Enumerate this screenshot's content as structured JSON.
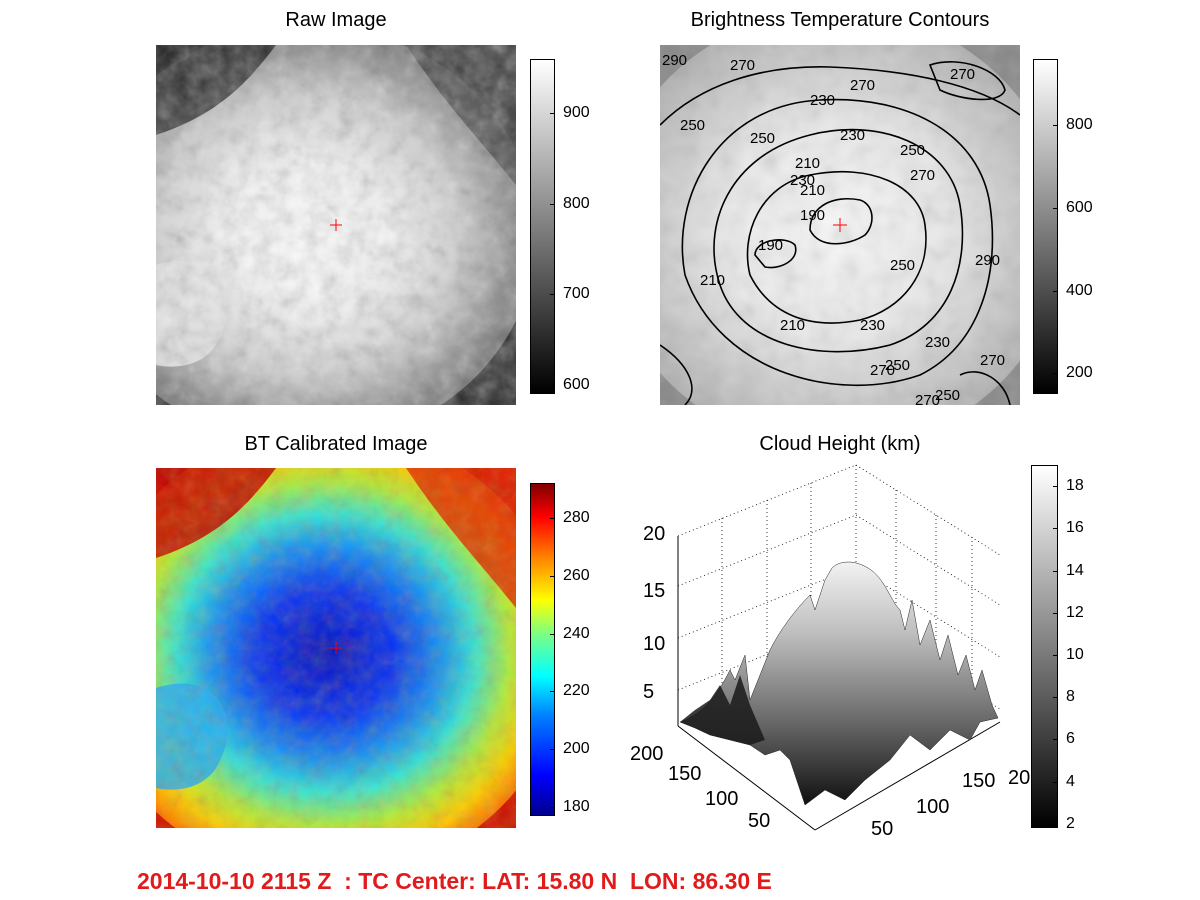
{
  "chart_data": [
    {
      "type": "heatmap",
      "title": "Raw Image",
      "colormap": "gray",
      "colorbar": {
        "ticks": [
          600,
          700,
          800,
          900
        ],
        "range": [
          590,
          960
        ]
      },
      "center_marker": "+",
      "marker_color": "#ff0000"
    },
    {
      "type": "heatmap",
      "title": "Brightness Temperature Contours",
      "colormap": "gray",
      "contour_levels": [
        190,
        210,
        230,
        250,
        270,
        290
      ],
      "contour_labels": [
        "290",
        "270",
        "270",
        "270",
        "230",
        "230",
        "250",
        "250",
        "210",
        "230",
        "190",
        "190",
        "210",
        "210",
        "210",
        "250",
        "250",
        "270",
        "230",
        "230",
        "250",
        "270",
        "270",
        "250",
        "270",
        "290"
      ],
      "colorbar": {
        "ticks": [
          200,
          400,
          600,
          800
        ],
        "range": [
          150,
          960
        ]
      },
      "center_marker": "+",
      "marker_color": "#ff0000"
    },
    {
      "type": "heatmap",
      "title": "BT Calibrated Image",
      "colormap": "jet",
      "colorbar": {
        "ticks": [
          180,
          200,
          220,
          240,
          260,
          280
        ],
        "range": [
          177,
          292
        ]
      },
      "center_marker": "+",
      "marker_color": "#ff0000"
    },
    {
      "type": "area",
      "subtype": "surface3d",
      "title": "Cloud Height (km)",
      "colormap": "gray",
      "zlim": [
        0,
        20
      ],
      "z_ticks": [
        "5",
        "10",
        "15",
        "20"
      ],
      "x_ticks": [
        "50",
        "100",
        "150",
        "20"
      ],
      "y_ticks": [
        "50",
        "100",
        "150",
        "200"
      ],
      "grid": true,
      "colorbar": {
        "ticks": [
          2,
          4,
          6,
          8,
          10,
          12,
          14,
          16,
          18
        ],
        "range": [
          1.8,
          19
        ]
      }
    }
  ],
  "footer": "2014-10-10 2115 Z  : TC Center: LAT: 15.80 N  LON: 86.30 E"
}
